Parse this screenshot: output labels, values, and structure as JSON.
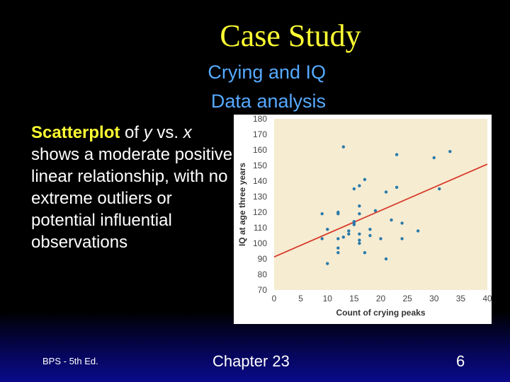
{
  "slide": {
    "title": "Case Study",
    "subtitle_line1": "Crying and IQ",
    "subtitle_line2": "Data analysis",
    "body": {
      "highlight": "Scatterplot",
      "t1": " of ",
      "var_y": "y",
      "t2": " vs. ",
      "var_x": "x",
      "rest": "shows a moderate positive linear relationship, with no extreme outliers or potential influential observations"
    },
    "footer_left": "BPS - 5th Ed.",
    "footer_center": "Chapter 23",
    "footer_right": "6"
  },
  "chart_data": {
    "type": "scatter",
    "xlabel": "Count of crying peaks",
    "ylabel": "IQ at age three years",
    "xlim": [
      0,
      40
    ],
    "ylim": [
      70,
      180
    ],
    "xticks": [
      0,
      5,
      10,
      15,
      20,
      25,
      30,
      35,
      40
    ],
    "yticks": [
      70,
      80,
      90,
      100,
      110,
      120,
      130,
      140,
      150,
      160,
      170,
      180
    ],
    "plot_background": "#f6ecd2",
    "point_color": "#2a7aa8",
    "line_color": "#d83a2a",
    "regression_line": {
      "intercept": 91.3,
      "slope": 1.49
    },
    "points": [
      [
        9,
        119
      ],
      [
        9,
        103
      ],
      [
        10,
        109
      ],
      [
        10,
        87
      ],
      [
        12,
        119
      ],
      [
        12,
        120
      ],
      [
        12,
        103
      ],
      [
        12,
        97
      ],
      [
        12,
        94
      ],
      [
        13,
        162
      ],
      [
        13,
        104
      ],
      [
        14,
        106
      ],
      [
        14,
        108
      ],
      [
        15,
        135
      ],
      [
        15,
        113
      ],
      [
        15,
        114
      ],
      [
        15,
        112
      ],
      [
        16,
        137
      ],
      [
        16,
        119
      ],
      [
        16,
        124
      ],
      [
        16,
        106
      ],
      [
        16,
        102
      ],
      [
        16,
        100
      ],
      [
        17,
        141
      ],
      [
        17,
        94
      ],
      [
        18,
        105
      ],
      [
        18,
        109
      ],
      [
        19,
        121
      ],
      [
        20,
        103
      ],
      [
        21,
        133
      ],
      [
        21,
        90
      ],
      [
        22,
        115
      ],
      [
        23,
        157
      ],
      [
        23,
        136
      ],
      [
        24,
        113
      ],
      [
        24,
        103
      ],
      [
        27,
        108
      ],
      [
        30,
        155
      ],
      [
        31,
        135
      ],
      [
        33,
        159
      ]
    ]
  }
}
